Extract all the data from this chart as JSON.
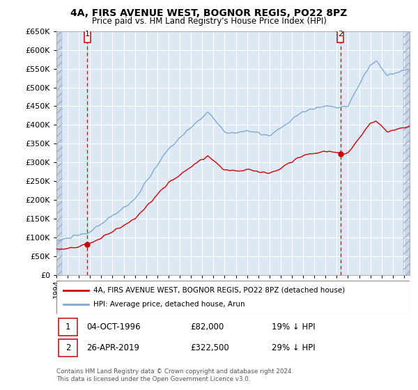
{
  "title": "4A, FIRS AVENUE WEST, BOGNOR REGIS, PO22 8PZ",
  "subtitle": "Price paid vs. HM Land Registry's House Price Index (HPI)",
  "ylim": [
    0,
    650000
  ],
  "yticks": [
    0,
    50000,
    100000,
    150000,
    200000,
    250000,
    300000,
    350000,
    400000,
    450000,
    500000,
    550000,
    600000,
    650000
  ],
  "xlim_start": 1994.0,
  "xlim_end": 2025.5,
  "hpi_color": "#7faacc",
  "price_color": "#cc0000",
  "vline_color": "#cc0000",
  "background_plot": "#dde8f5",
  "sale1_x": 1996.75,
  "sale1_y": 82000,
  "sale1_label": "1",
  "sale2_x": 2019.33,
  "sale2_y": 322500,
  "sale2_label": "2",
  "legend_line1": "4A, FIRS AVENUE WEST, BOGNOR REGIS, PO22 8PZ (detached house)",
  "legend_line2": "HPI: Average price, detached house, Arun",
  "note1_label": "1",
  "note1_date": "04-OCT-1996",
  "note1_price": "£82,000",
  "note1_hpi": "19% ↓ HPI",
  "note2_label": "2",
  "note2_date": "26-APR-2019",
  "note2_price": "£322,500",
  "note2_hpi": "29% ↓ HPI",
  "footer": "Contains HM Land Registry data © Crown copyright and database right 2024.\nThis data is licensed under the Open Government Licence v3.0."
}
